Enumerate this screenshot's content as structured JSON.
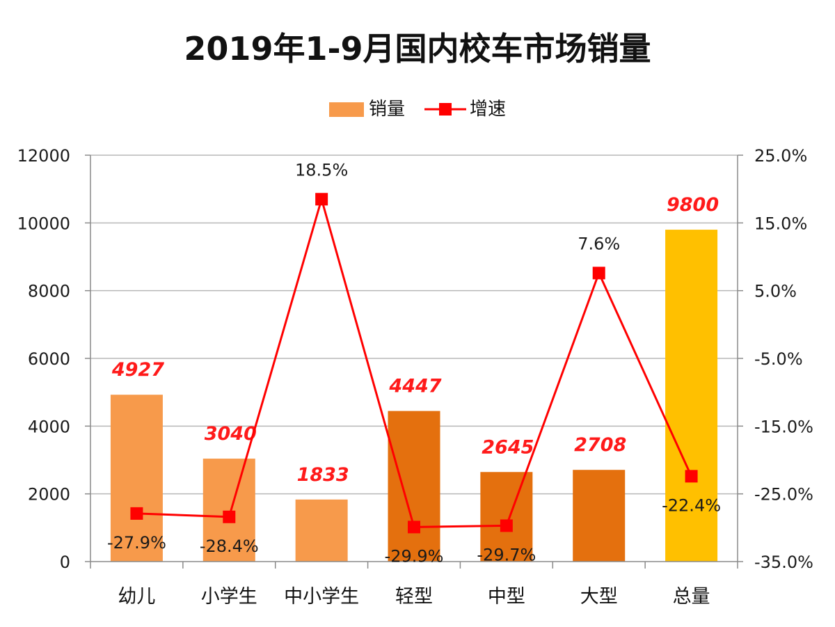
{
  "colors": {
    "bar_light": "#f79a4b",
    "bar_dark": "#e4700e",
    "bar_total": "#ffc000",
    "line": "#ff0000",
    "value_label": "#ff1a1a",
    "grid": "#b7b7b7"
  },
  "chart_data": {
    "type": "bar",
    "title": "2019年1-9月国内校车市场销量",
    "legend": {
      "bar_label": "销量",
      "line_label": "增速",
      "position": "top"
    },
    "categories": [
      "幼儿",
      "小学生",
      "中小学生",
      "轻型",
      "中型",
      "大型",
      "总量"
    ],
    "category_labels_display": [
      "幼儿",
      "小学生",
      "中小学生",
      "轻型",
      "中型",
      "大型",
      "总量"
    ],
    "bar_groups": [
      "light",
      "light",
      "light",
      "dark",
      "dark",
      "dark",
      "total"
    ],
    "series": [
      {
        "name": "销量",
        "kind": "bar",
        "axis": "left",
        "values": [
          4927,
          3040,
          1833,
          4447,
          2645,
          2708,
          9800
        ],
        "labels": [
          "4927",
          "3040",
          "1833",
          "4447",
          "2645",
          "2708",
          "9800"
        ]
      },
      {
        "name": "增速",
        "kind": "line",
        "axis": "right",
        "values": [
          -27.9,
          -28.4,
          18.5,
          -29.9,
          -29.7,
          7.6,
          -22.4
        ],
        "labels": [
          "-27.9%",
          "-28.4%",
          "18.5%",
          "-29.9%",
          "-29.7%",
          "7.6%",
          "-22.4%"
        ]
      }
    ],
    "ylim_left": [
      0,
      12000
    ],
    "yticks_left": [
      0,
      2000,
      4000,
      6000,
      8000,
      10000,
      12000
    ],
    "ytick_labels_left": [
      "0",
      "2000",
      "4000",
      "6000",
      "8000",
      "10000",
      "12000"
    ],
    "ylim_right": [
      -35,
      25
    ],
    "yticks_right": [
      -35,
      -25,
      -15,
      -5,
      5,
      15,
      25
    ],
    "ytick_labels_right": [
      "-35.0%",
      "-25.0%",
      "-15.0%",
      "-5.0%",
      "5.0%",
      "15.0%",
      "25.0%"
    ],
    "grid": true,
    "xlabel": "",
    "ylabel": ""
  }
}
